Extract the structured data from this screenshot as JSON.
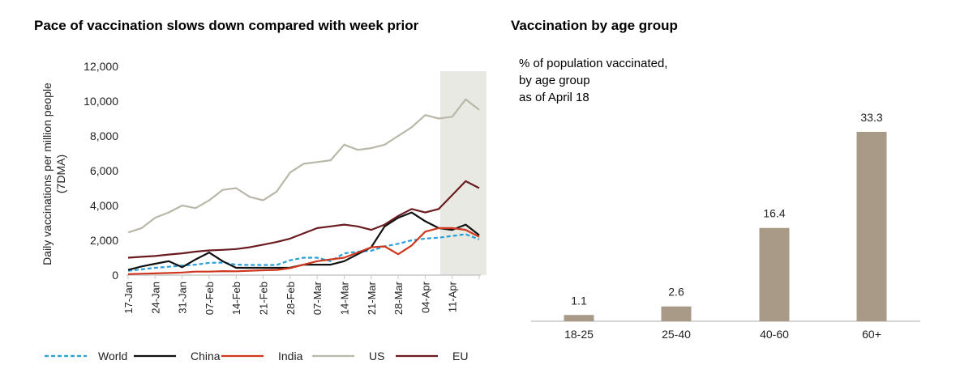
{
  "chart_data": [
    {
      "type": "line",
      "title": "Pace of vaccination slows down compared with week prior",
      "xlabel": "",
      "ylabel": "Daily vaccinations per million people (7DMA)",
      "ylim": [
        0,
        12000
      ],
      "yticks": [
        "0",
        "2,000",
        "4,000",
        "6,000",
        "8,000",
        "10,000",
        "12,000"
      ],
      "ytick_values": [
        0,
        2000,
        4000,
        6000,
        8000,
        10000,
        12000
      ],
      "xticks": [
        "17-Jan",
        "24-Jan",
        "31-Jan",
        "07-Feb",
        "14-Feb",
        "21-Feb",
        "28-Feb",
        "07-Mar",
        "14-Mar",
        "21-Mar",
        "28-Mar",
        "04-Apr",
        "11-Apr"
      ],
      "x_unit": "days since 17-Jan",
      "xlim": [
        0,
        92
      ],
      "highlight_range": [
        81,
        92
      ],
      "grid": false,
      "legend_position": "bottom",
      "x": [
        0,
        3.5,
        7,
        10.5,
        14,
        17.5,
        21,
        24.5,
        28,
        31.5,
        35,
        38.5,
        42,
        45.5,
        49,
        52.5,
        56,
        59.5,
        63,
        66.5,
        70,
        73.5,
        77,
        80.5,
        84,
        87.5,
        91
      ],
      "series": [
        {
          "name": "World",
          "color": "#2a9fd8",
          "dash": true,
          "values": [
            250,
            330,
            420,
            480,
            550,
            600,
            700,
            720,
            600,
            580,
            580,
            580,
            850,
            1000,
            1000,
            800,
            1250,
            1350,
            1400,
            1650,
            1800,
            2000,
            2100,
            2150,
            2250,
            2350,
            2050
          ]
        },
        {
          "name": "China",
          "color": "#111111",
          "dash": false,
          "values": [
            300,
            500,
            650,
            800,
            450,
            900,
            1300,
            800,
            420,
            420,
            420,
            420,
            430,
            600,
            600,
            600,
            800,
            1200,
            1600,
            2800,
            3300,
            3600,
            3100,
            2700,
            2600,
            2900,
            2300
          ]
        },
        {
          "name": "India",
          "color": "#d0371f",
          "dash": false,
          "values": [
            50,
            80,
            100,
            120,
            150,
            200,
            200,
            230,
            220,
            250,
            280,
            300,
            400,
            600,
            800,
            900,
            1000,
            1300,
            1600,
            1650,
            1200,
            1700,
            2500,
            2700,
            2700,
            2600,
            2200
          ]
        },
        {
          "name": "US",
          "color": "#b9b8a8",
          "dash": false,
          "values": [
            2450,
            2700,
            3300,
            3600,
            4000,
            3850,
            4300,
            4900,
            5000,
            4500,
            4300,
            4800,
            5900,
            6400,
            6500,
            6600,
            7500,
            7200,
            7300,
            7500,
            8000,
            8500,
            9200,
            9000,
            9100,
            10100,
            9500
          ]
        },
        {
          "name": "EU",
          "color": "#6a1b1f",
          "dash": false,
          "values": [
            1000,
            1050,
            1100,
            1180,
            1250,
            1350,
            1420,
            1450,
            1500,
            1600,
            1750,
            1900,
            2100,
            2400,
            2700,
            2800,
            2900,
            2800,
            2600,
            2900,
            3400,
            3800,
            3600,
            3800,
            4600,
            5400,
            5000
          ]
        }
      ]
    },
    {
      "type": "bar",
      "title": "Vaccination by age group",
      "subtitle": [
        "% of population vaccinated,",
        "by age group",
        "as of April 18"
      ],
      "categories": [
        "18-25",
        "25-40",
        "40-60",
        "60+"
      ],
      "values": [
        1.1,
        2.6,
        16.4,
        33.3
      ],
      "value_labels": [
        "1.1",
        "2.6",
        "16.4",
        "33.3"
      ],
      "ylim": [
        0,
        35
      ],
      "bar_color": "#a89a86",
      "xlabel": "",
      "ylabel": ""
    }
  ]
}
